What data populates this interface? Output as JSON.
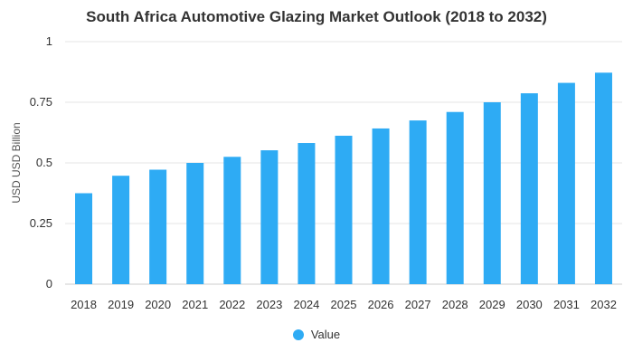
{
  "chart_data": {
    "type": "bar",
    "title": "South Africa Automotive Glazing Market Outlook (2018 to 2032)",
    "xlabel": "",
    "ylabel": "USD USD Billion",
    "categories": [
      "2018",
      "2019",
      "2020",
      "2021",
      "2022",
      "2023",
      "2024",
      "2025",
      "2026",
      "2027",
      "2028",
      "2029",
      "2030",
      "2031",
      "2032"
    ],
    "series": [
      {
        "name": "Value",
        "values": [
          0.375,
          0.447,
          0.472,
          0.5,
          0.525,
          0.552,
          0.582,
          0.612,
          0.642,
          0.675,
          0.71,
          0.75,
          0.787,
          0.83,
          0.872
        ]
      }
    ],
    "ylim": [
      0,
      1
    ],
    "yticks": [
      "0",
      "0.25",
      "0.5",
      "0.75",
      "1"
    ],
    "grid": true,
    "legend_position": "bottom",
    "colors": {
      "bar": "#2eabf4",
      "grid": "#e6e6e6",
      "text": "#333333"
    }
  }
}
